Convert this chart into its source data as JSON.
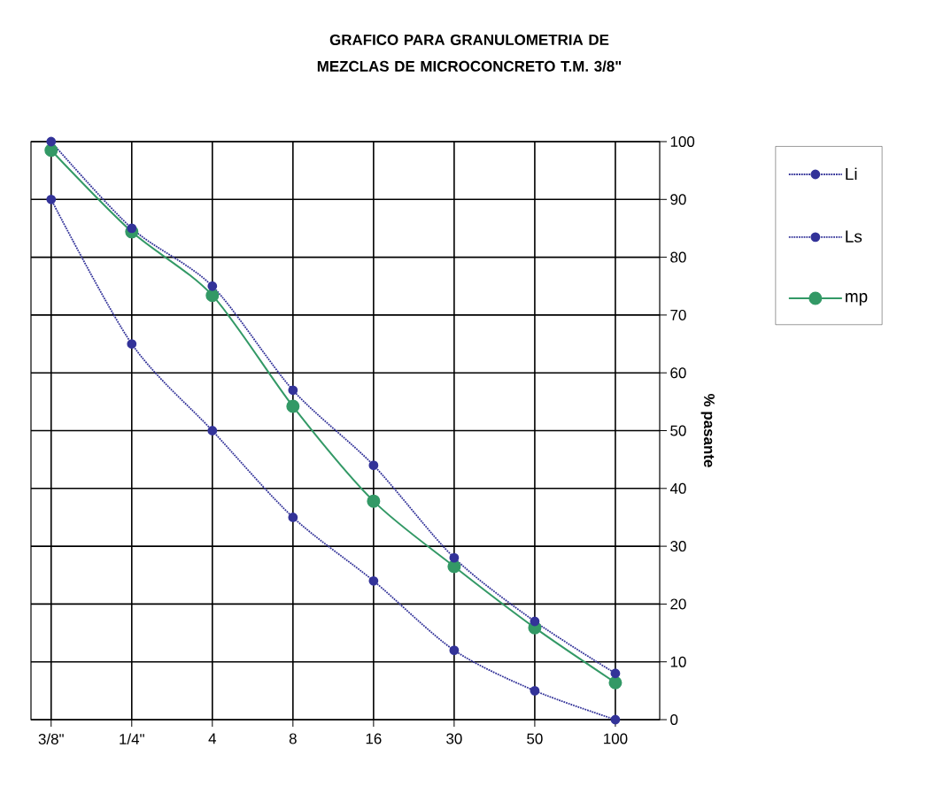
{
  "chart_data": {
    "type": "line",
    "title": "GRAFICO  PARA  GRANULOMETRIA  DE  MEZCLAS  DE  MICROCONCRETO  T.M.  3/8\"",
    "ylabel": "% pasante",
    "categories": [
      "3/8\"",
      "1/4\"",
      "4",
      "8",
      "16",
      "30",
      "50",
      "100"
    ],
    "series": [
      {
        "name": "Li",
        "color": "#333399",
        "line_style": "dotted",
        "values": [
          90,
          65,
          50,
          35,
          24,
          12,
          5,
          0
        ]
      },
      {
        "name": "Ls",
        "color": "#333399",
        "line_style": "dotted",
        "values": [
          100,
          85,
          75,
          57,
          44,
          28,
          17,
          8
        ]
      },
      {
        "name": "mp",
        "color": "#339966",
        "line_style": "solid",
        "values": [
          98.5,
          84.4,
          73.4,
          54.2,
          37.8,
          26.5,
          15.9,
          6.4
        ]
      }
    ],
    "ylim": [
      0,
      100
    ],
    "yticks": [
      0,
      10,
      20,
      30,
      40,
      50,
      60,
      70,
      80,
      90,
      100
    ],
    "grid": true,
    "legend": "right",
    "marker": "circle"
  }
}
